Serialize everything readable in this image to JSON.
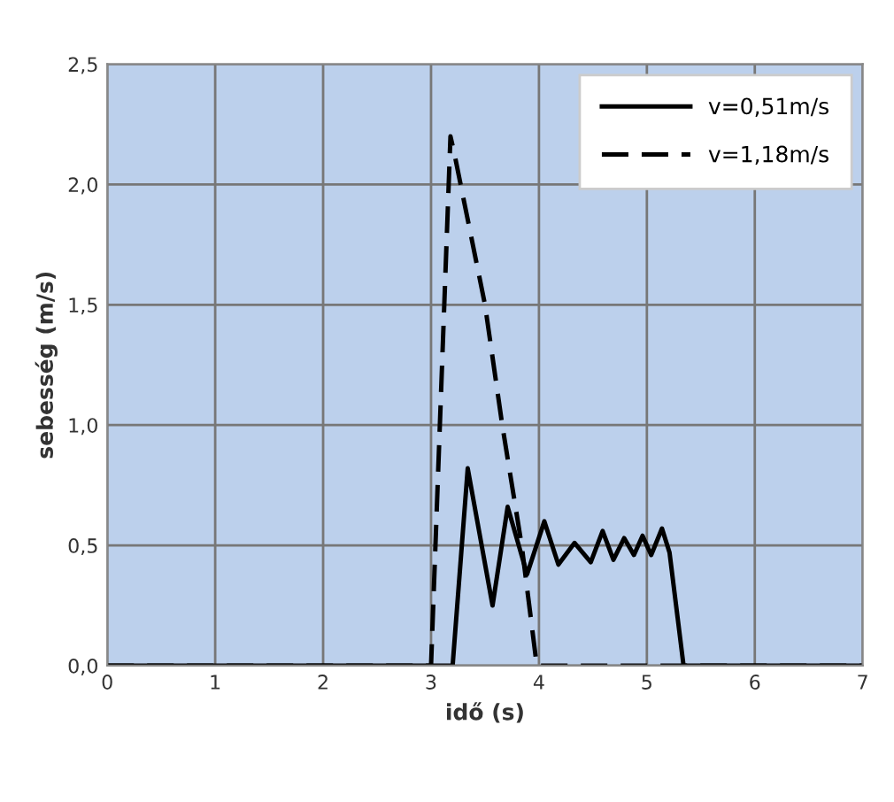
{
  "chart_data": {
    "type": "line",
    "xlabel": "idő (s)",
    "ylabel": "sebesség (m/s)",
    "xlim": [
      0,
      7
    ],
    "xticks": [
      0,
      1,
      2,
      3,
      4,
      5,
      6,
      7
    ],
    "ylim": [
      0,
      2.5
    ],
    "yticks": [
      {
        "value": 0,
        "label": "0,0"
      },
      {
        "value": 0.5,
        "label": "0,5"
      },
      {
        "value": 1,
        "label": "1,0"
      },
      {
        "value": 1.5,
        "label": "1,5"
      },
      {
        "value": 2,
        "label": "2,0"
      },
      {
        "value": 2.5,
        "label": "2,5"
      }
    ],
    "grid": true,
    "legend": "top right",
    "series": [
      {
        "name": "v=0,51m/s",
        "color": "#000000",
        "line_style": "solid",
        "x": [
          0,
          3.2,
          3.34,
          3.57,
          3.71,
          3.89,
          4.05,
          4.18,
          4.33,
          4.48,
          4.59,
          4.69,
          4.79,
          4.88,
          4.96,
          5.04,
          5.14,
          5.21,
          5.34,
          7
        ],
        "values": [
          0,
          0,
          0.82,
          0.25,
          0.66,
          0.38,
          0.6,
          0.42,
          0.51,
          0.43,
          0.56,
          0.44,
          0.53,
          0.46,
          0.54,
          0.46,
          0.57,
          0.47,
          0,
          0
        ]
      },
      {
        "name": "v=1,18m/s",
        "color": "#000000",
        "line_style": "dashed",
        "x": [
          0,
          3.0,
          3.18,
          3.22,
          3.5,
          3.66,
          3.84,
          3.98,
          7
        ],
        "values": [
          0,
          0,
          2.2,
          2.12,
          1.5,
          1.0,
          0.5,
          0,
          0
        ]
      }
    ]
  }
}
